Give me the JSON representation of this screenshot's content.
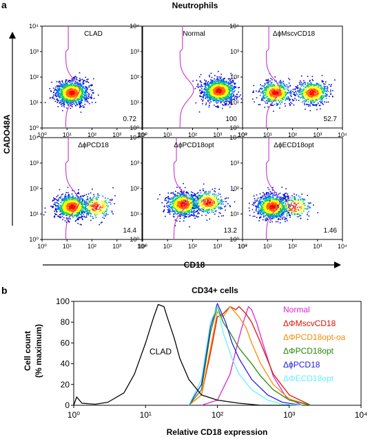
{
  "chart_data": [
    {
      "type": "scatter",
      "panel_letter": "a",
      "title": "Neutrophils",
      "xlabel": "CD18",
      "ylabel": "CADO48A",
      "x_scale": "log",
      "y_scale": "log",
      "xlim": [
        1,
        10000
      ],
      "ylim": [
        1,
        10000
      ],
      "x_tick_labels": [
        "10⁰",
        "10¹",
        "10²",
        "10³",
        "10⁴"
      ],
      "y_tick_labels": [
        "10⁰",
        "10¹",
        "10²",
        "10³",
        "10⁴"
      ],
      "panels": [
        {
          "label": "CLAD",
          "percent": "0.72",
          "populations": [
            {
              "x": 15,
              "y": 25,
              "weight": 1.0
            }
          ],
          "histogram_overlay_peak_x": 20
        },
        {
          "label": "Normal",
          "percent": "100",
          "populations": [
            {
              "x": 1100,
              "y": 30,
              "weight": 1.0
            }
          ],
          "histogram_overlay_peak_x": 70
        },
        {
          "label": "ΔϕMscvCD18",
          "percent": "52.7",
          "populations": [
            {
              "x": 20,
              "y": 25,
              "weight": 0.5
            },
            {
              "x": 600,
              "y": 25,
              "weight": 0.5
            }
          ],
          "histogram_overlay_peak_x": 20
        },
        {
          "label": "ΔϕPCD18",
          "percent": "14.4",
          "populations": [
            {
              "x": 15,
              "y": 20,
              "weight": 0.8
            },
            {
              "x": 150,
              "y": 20,
              "weight": 0.2
            }
          ],
          "histogram_overlay_peak_x": 20
        },
        {
          "label": "ΔϕPCD18opt",
          "percent": "13.2",
          "populations": [
            {
              "x": 40,
              "y": 25,
              "weight": 0.7
            },
            {
              "x": 400,
              "y": 30,
              "weight": 0.3
            }
          ],
          "histogram_overlay_peak_x": 40
        },
        {
          "label": "ΔϕECD18opt",
          "percent": "1.46",
          "populations": [
            {
              "x": 15,
              "y": 20,
              "weight": 0.85
            },
            {
              "x": 120,
              "y": 20,
              "weight": 0.15
            }
          ],
          "histogram_overlay_peak_x": 20
        }
      ],
      "colors": {
        "density": [
          "#0000cc",
          "#0066ff",
          "#00cc66",
          "#ffff00",
          "#ff6600",
          "#ff0000"
        ],
        "overlay": "#cc33cc"
      }
    },
    {
      "type": "line",
      "panel_letter": "b",
      "title": "CD34+ cells",
      "xlabel": "Relative CD18 expression",
      "ylabel": "Cell count",
      "ylabel2": "(% maximum)",
      "x_scale": "log",
      "xlim": [
        1,
        10000
      ],
      "ylim": [
        0,
        100
      ],
      "x_tick_labels": [
        "10⁰",
        "10¹",
        "10²",
        "10³",
        "10⁴"
      ],
      "y_ticks": [
        0,
        20,
        40,
        60,
        80,
        100
      ],
      "clad_label": "CLAD",
      "series": [
        {
          "name": "Normal",
          "color": "#dd22dd",
          "x": [
            60,
            100,
            150,
            200,
            230,
            270,
            300,
            350,
            450,
            600,
            900,
            1500
          ],
          "y": [
            0,
            5,
            30,
            65,
            80,
            95,
            92,
            80,
            55,
            28,
            8,
            0
          ]
        },
        {
          "name": "ΔΦMscvCD18",
          "color": "#dd1100",
          "x": [
            40,
            60,
            80,
            100,
            120,
            150,
            180,
            200,
            250,
            300,
            400,
            600,
            1000,
            2000
          ],
          "y": [
            0,
            10,
            50,
            85,
            88,
            95,
            92,
            95,
            88,
            80,
            60,
            30,
            10,
            0
          ]
        },
        {
          "name": "ΔΦPCD18opt-oa",
          "color": "#ff8800",
          "x": [
            40,
            60,
            80,
            100,
            120,
            150,
            200,
            250,
            300,
            400,
            600,
            1000,
            2000
          ],
          "y": [
            0,
            10,
            55,
            90,
            85,
            95,
            85,
            75,
            60,
            40,
            20,
            6,
            0
          ]
        },
        {
          "name": "ΔΦPCD18opt",
          "color": "#228800",
          "x": [
            40,
            60,
            80,
            100,
            120,
            150,
            200,
            300,
            400,
            600,
            1000,
            2000
          ],
          "y": [
            0,
            15,
            70,
            95,
            80,
            70,
            55,
            40,
            28,
            15,
            5,
            0
          ]
        },
        {
          "name": "ΔϕPCD18",
          "color": "#2222dd",
          "x": [
            40,
            60,
            80,
            100,
            130,
            160,
            200,
            300,
            500,
            800,
            1500
          ],
          "y": [
            0,
            20,
            75,
            98,
            80,
            60,
            45,
            25,
            10,
            3,
            0
          ]
        },
        {
          "name": "ΔΦECD18opt",
          "color": "#66eeff",
          "x": [
            40,
            60,
            80,
            100,
            120,
            160,
            200,
            300,
            500,
            800,
            1500
          ],
          "y": [
            0,
            25,
            80,
            95,
            70,
            45,
            30,
            15,
            5,
            1,
            0
          ]
        },
        {
          "name": "CLAD",
          "color": "#000000",
          "x": [
            1,
            1.1,
            1.3,
            2,
            3,
            5,
            7,
            10,
            13,
            15,
            18,
            20,
            25,
            30,
            40,
            60,
            100,
            200,
            400,
            1000
          ],
          "y": [
            0,
            8,
            2,
            1,
            3,
            12,
            30,
            60,
            85,
            97,
            95,
            85,
            65,
            45,
            25,
            10,
            5,
            2,
            0,
            0
          ]
        }
      ]
    }
  ]
}
